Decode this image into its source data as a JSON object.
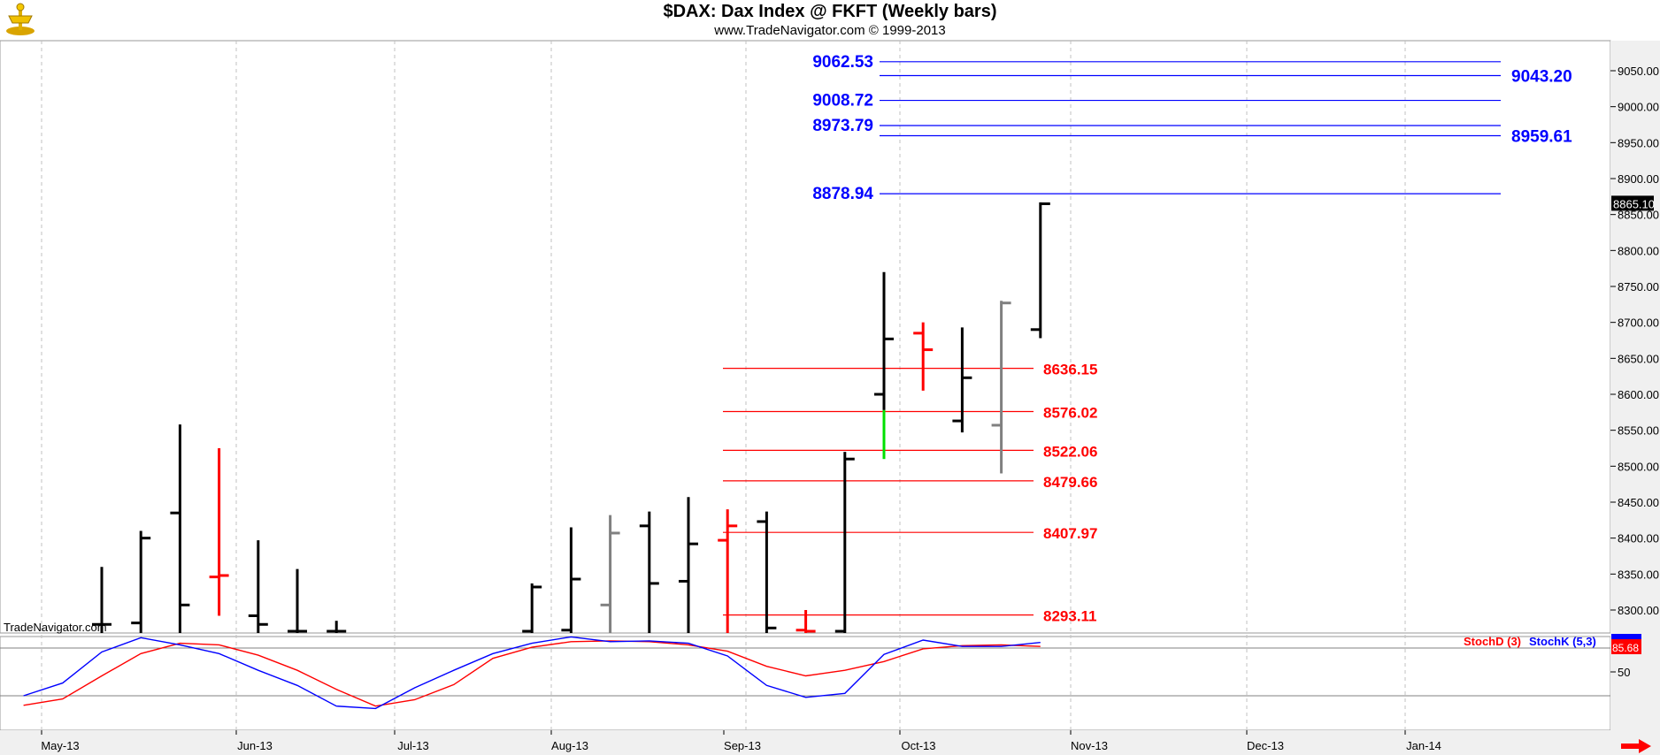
{
  "chart_data": {
    "type": "bar",
    "title": "$DAX:  Dax Index @ FKFT  (Weekly bars)",
    "subtitle": "www.TradeNavigator.com © 1999-2013",
    "watermark": "TradeNavigator.com",
    "price_ylim": [
      8270,
      9110
    ],
    "price_ticks": [
      "8300.00",
      "8350.00",
      "8400.00",
      "8450.00",
      "8500.00",
      "8550.00",
      "8600.00",
      "8650.00",
      "8700.00",
      "8750.00",
      "8800.00",
      "8850.00",
      "8900.00",
      "8950.00",
      "9000.00",
      "9050.00"
    ],
    "x_labels": [
      "May-13",
      "Jun-13",
      "Jul-13",
      "Aug-13",
      "Sep-13",
      "Oct-13",
      "Nov-13",
      "Dec-13",
      "Jan-14"
    ],
    "last_price": "8865.10",
    "bars": [
      {
        "week": 1,
        "h": 8360,
        "l": 8260,
        "o": 8280,
        "c": 8280,
        "color": "#000000"
      },
      {
        "week": 2,
        "h": 8410,
        "l": 8260,
        "o": 8282,
        "c": 8400,
        "color": "#000000"
      },
      {
        "week": 3,
        "h": 8558,
        "l": 8260,
        "o": 8435,
        "c": 8307,
        "color": "#000000"
      },
      {
        "week": 4,
        "h": 8525,
        "l": 8292,
        "o": 8346,
        "c": 8348,
        "color": "#ff0000"
      },
      {
        "week": 5,
        "h": 8397,
        "l": 8260,
        "o": 8292,
        "c": 8280,
        "color": "#000000"
      },
      {
        "week": 6,
        "h": 8357,
        "l": 8260,
        "o": 8270,
        "c": 8268,
        "color": "#000000"
      },
      {
        "week": 7,
        "h": 8285,
        "l": 8260,
        "o": 8265,
        "c": 8270,
        "color": "#000000"
      },
      {
        "week": 12,
        "h": 8337,
        "l": 8260,
        "o": 8270,
        "c": 8332,
        "color": "#000000"
      },
      {
        "week": 13,
        "h": 8415,
        "l": 8260,
        "o": 8272,
        "c": 8343,
        "color": "#000000"
      },
      {
        "week": 14,
        "h": 8432,
        "l": 8260,
        "o": 8307,
        "c": 8407,
        "color": "#808080"
      },
      {
        "week": 15,
        "h": 8437,
        "l": 8260,
        "o": 8417,
        "c": 8337,
        "color": "#000000"
      },
      {
        "week": 16,
        "h": 8457,
        "l": 8260,
        "o": 8340,
        "c": 8392,
        "color": "#000000"
      },
      {
        "week": 17,
        "h": 8440,
        "l": 8260,
        "o": 8397,
        "c": 8417,
        "color": "#ff0000"
      },
      {
        "week": 18,
        "h": 8437,
        "l": 8260,
        "o": 8423,
        "c": 8275,
        "color": "#000000"
      },
      {
        "week": 19,
        "h": 8300,
        "l": 8260,
        "o": 8272,
        "c": 8270,
        "color": "#ff0000"
      },
      {
        "week": 20,
        "h": 8520,
        "l": 8260,
        "o": 8270,
        "c": 8510,
        "color": "#000000"
      },
      {
        "week": 21,
        "h": 8770,
        "l": 8510,
        "o": 8600,
        "c": 8677,
        "color": "#000000",
        "low_segment": {
          "from": 8510,
          "to": 8578,
          "color": "#00e000"
        }
      },
      {
        "week": 22,
        "h": 8700,
        "l": 8605,
        "o": 8685,
        "c": 8662,
        "color": "#ff0000"
      },
      {
        "week": 23,
        "h": 8693,
        "l": 8547,
        "o": 8563,
        "c": 8623,
        "color": "#000000"
      },
      {
        "week": 24,
        "h": 8730,
        "l": 8490,
        "o": 8557,
        "c": 8727,
        "color": "#808080"
      },
      {
        "week": 25,
        "h": 8867,
        "l": 8678,
        "o": 8690,
        "c": 8865,
        "color": "#000000"
      }
    ],
    "resistance_levels": [
      {
        "value": 9062.53,
        "label": "9062.53",
        "label_side": "left"
      },
      {
        "value": 9043.2,
        "label": "9043.20",
        "label_side": "right"
      },
      {
        "value": 9008.72,
        "label": "9008.72",
        "label_side": "left"
      },
      {
        "value": 8973.79,
        "label": "8973.79",
        "label_side": "left"
      },
      {
        "value": 8959.61,
        "label": "8959.61",
        "label_side": "right"
      },
      {
        "value": 8878.94,
        "label": "8878.94",
        "label_side": "left"
      }
    ],
    "resistance_color": "#0000ff",
    "support_levels": [
      {
        "value": 8636.15,
        "label": "8636.15"
      },
      {
        "value": 8576.02,
        "label": "8576.02"
      },
      {
        "value": 8522.06,
        "label": "8522.06"
      },
      {
        "value": 8479.66,
        "label": "8479.66"
      },
      {
        "value": 8407.97,
        "label": "8407.97"
      },
      {
        "value": 8293.11,
        "label": "8293.11"
      }
    ],
    "support_color": "#ff0000",
    "indicator": {
      "ylim": [
        0,
        100
      ],
      "ticks": [
        "50"
      ],
      "reference_lines": [
        80,
        20
      ],
      "stochD_label": "StochD (3)",
      "stochK_label": "StochK (5,3)",
      "last_value": "85.68",
      "stochK": [
        [
          -1,
          20
        ],
        [
          0,
          36
        ],
        [
          1,
          75
        ],
        [
          2,
          93
        ],
        [
          3,
          84
        ],
        [
          4,
          73
        ],
        [
          5,
          52
        ],
        [
          6,
          33
        ],
        [
          7,
          7
        ],
        [
          8,
          4
        ],
        [
          9,
          30
        ],
        [
          10,
          52
        ],
        [
          11,
          73
        ],
        [
          12,
          86
        ],
        [
          13,
          94
        ],
        [
          14,
          88
        ],
        [
          15,
          89
        ],
        [
          16,
          86
        ],
        [
          17,
          70
        ],
        [
          18,
          33
        ],
        [
          19,
          18
        ],
        [
          20,
          23
        ],
        [
          21,
          72
        ],
        [
          22,
          90
        ],
        [
          23,
          82
        ],
        [
          24,
          82
        ],
        [
          25,
          87
        ]
      ],
      "stochD": [
        [
          -1,
          8
        ],
        [
          0,
          16
        ],
        [
          1,
          45
        ],
        [
          2,
          73
        ],
        [
          3,
          86
        ],
        [
          4,
          84
        ],
        [
          5,
          71
        ],
        [
          6,
          52
        ],
        [
          7,
          28
        ],
        [
          8,
          7
        ],
        [
          9,
          15
        ],
        [
          10,
          34
        ],
        [
          11,
          67
        ],
        [
          12,
          81
        ],
        [
          13,
          88
        ],
        [
          14,
          89
        ],
        [
          15,
          88
        ],
        [
          16,
          84
        ],
        [
          17,
          76
        ],
        [
          18,
          57
        ],
        [
          19,
          45
        ],
        [
          20,
          52
        ],
        [
          21,
          63
        ],
        [
          22,
          79
        ],
        [
          23,
          83
        ],
        [
          24,
          84
        ],
        [
          25,
          82
        ]
      ],
      "stochK_color": "#0000ff",
      "stochD_color": "#ff0000"
    }
  }
}
